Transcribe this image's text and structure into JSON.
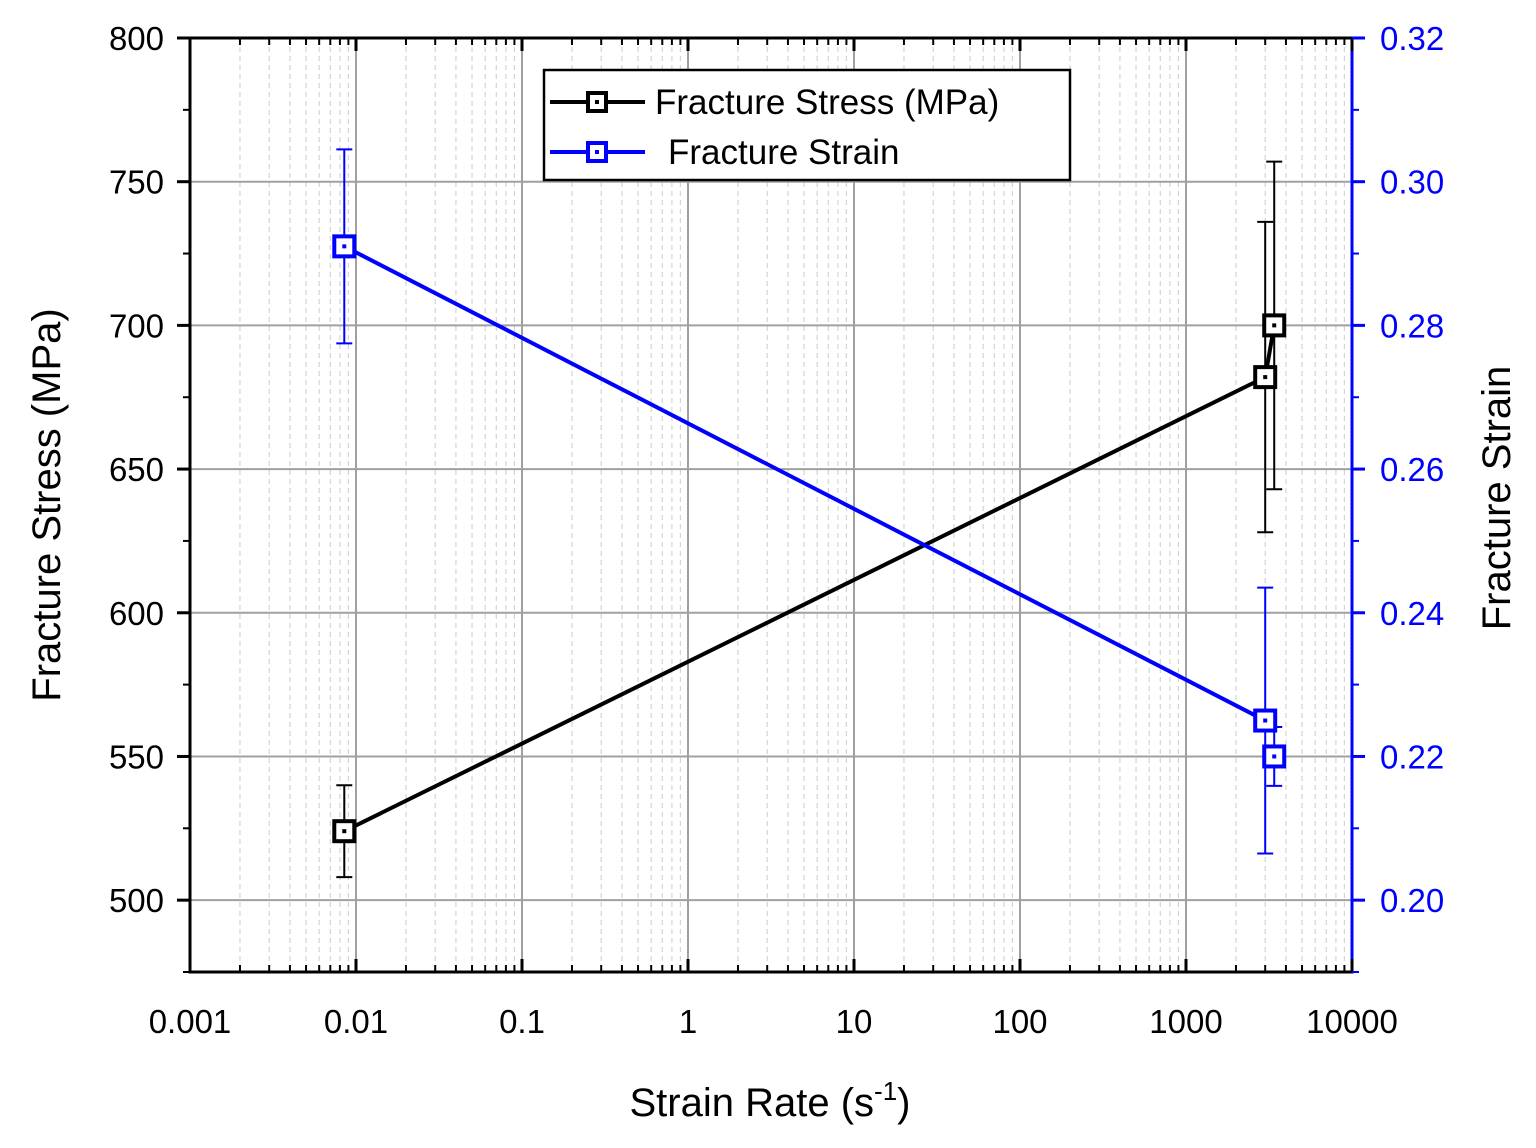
{
  "chart_data": {
    "type": "line",
    "title": "",
    "xlabel": {
      "base": "Strain Rate (s",
      "sup": "-1",
      "end": ")"
    },
    "ylabel": "Fracture Stress (MPa)",
    "y2label": "Fracture Strain",
    "xscale": "log",
    "xlim": [
      0.001,
      10000
    ],
    "ylim": [
      475,
      800
    ],
    "y2lim": [
      0.19,
      0.32
    ],
    "x_ticks": [
      0.001,
      0.01,
      0.1,
      1,
      10,
      100,
      1000,
      10000
    ],
    "x_tick_labels": [
      "0.001",
      "0.01",
      "0.1",
      "1",
      "10",
      "100",
      "1000",
      "10000"
    ],
    "y_ticks": [
      500,
      550,
      600,
      650,
      700,
      750,
      800
    ],
    "y_tick_labels": [
      "500",
      "550",
      "600",
      "650",
      "700",
      "750",
      "800"
    ],
    "y2_ticks": [
      0.2,
      0.22,
      0.24,
      0.26,
      0.28,
      0.3,
      0.32
    ],
    "y2_tick_labels": [
      "0.20",
      "0.22",
      "0.24",
      "0.26",
      "0.28",
      "0.30",
      "0.32"
    ],
    "grid": true,
    "legend_position": "top-center",
    "colors": {
      "stress": "#000000",
      "strain": "#0000ff",
      "grid": "#a0a0a0",
      "minor_grid": "#d4d4d4"
    },
    "series": [
      {
        "name": "Fracture Stress (MPa)",
        "axis": "left",
        "color": "#000000",
        "marker": "open-square",
        "x": [
          0.0085,
          3000,
          3400
        ],
        "y": [
          524,
          682,
          700
        ],
        "err": [
          16,
          54,
          57
        ],
        "connected": [
          true,
          true,
          true
        ]
      },
      {
        "name": "Fracture Strain",
        "axis": "right",
        "color": "#0000ff",
        "marker": "open-square",
        "x": [
          0.0085,
          3000,
          3400
        ],
        "y": [
          0.291,
          0.225,
          0.22
        ],
        "err": [
          0.0135,
          0.0185,
          0.0041
        ],
        "connected": [
          true,
          true,
          false
        ]
      }
    ]
  }
}
